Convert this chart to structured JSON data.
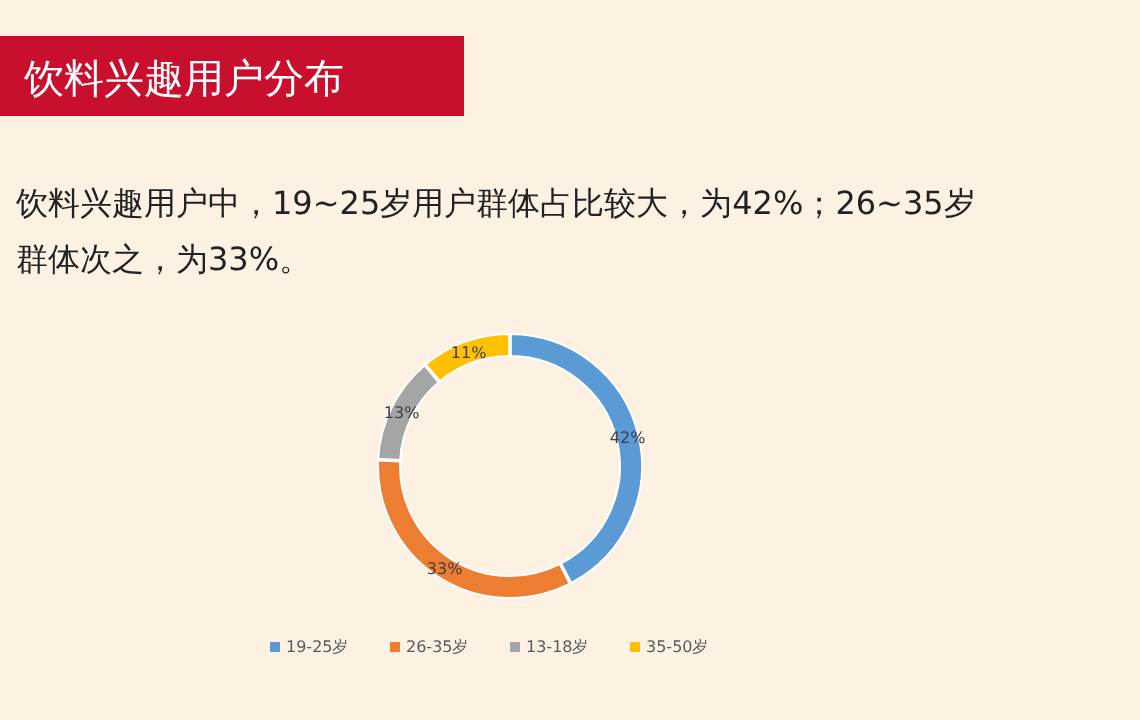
{
  "chart_data": {
    "type": "donut",
    "title": "饮料兴趣用户分布",
    "subtitle": "饮料兴趣用户中，19~25岁用户群体占比较大，为42%；26~35岁群体次之，为33%。",
    "categories": [
      "19-25岁",
      "26-35岁",
      "13-18岁",
      "35-50岁"
    ],
    "values": [
      42,
      33,
      13,
      11
    ],
    "colors": [
      "#5b9bd5",
      "#ed7d31",
      "#a5a5a5",
      "#ffc000"
    ],
    "value_labels": [
      "42%",
      "33%",
      "13%",
      "11%"
    ],
    "legend": "bottom"
  }
}
